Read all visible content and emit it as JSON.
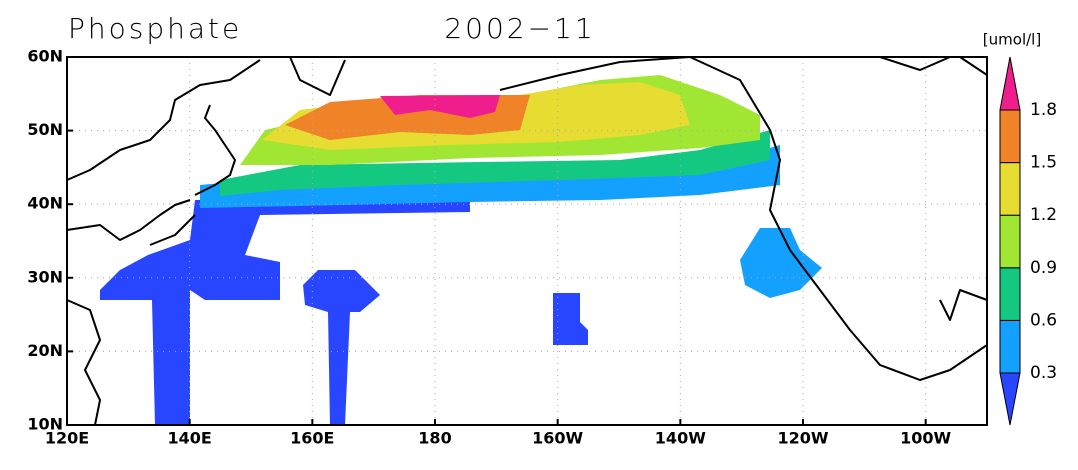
{
  "title": "Phosphate",
  "date": "2002−11",
  "unit": "[umol/l]",
  "xlim": [
    120,
    270
  ],
  "ylim": [
    10,
    60
  ],
  "lon_ticks": [
    {
      "value": 120,
      "label": "120E"
    },
    {
      "value": 140,
      "label": "140E"
    },
    {
      "value": 160,
      "label": "160E"
    },
    180,
    {
      "value": 200,
      "label": "160W"
    },
    {
      "value": 220,
      "label": "140W"
    },
    {
      "value": 240,
      "label": "120W"
    },
    {
      "value": 260,
      "label": "100W"
    }
  ],
  "lat_ticks": [
    {
      "value": 10,
      "label": "10N"
    },
    {
      "value": 20,
      "label": "20N"
    },
    {
      "value": 30,
      "label": "30N"
    },
    {
      "value": 40,
      "label": "40N"
    },
    {
      "value": 50,
      "label": "50N"
    },
    {
      "value": 60,
      "label": "60N"
    }
  ],
  "grid": true,
  "colorbar": {
    "levels": [
      0.3,
      0.6,
      0.9,
      1.2,
      1.5,
      1.8
    ],
    "colors": [
      "#2846ff",
      "#14a0ff",
      "#14c882",
      "#a0e632",
      "#e6dc32",
      "#f08228",
      "#f01e8c"
    ]
  }
}
